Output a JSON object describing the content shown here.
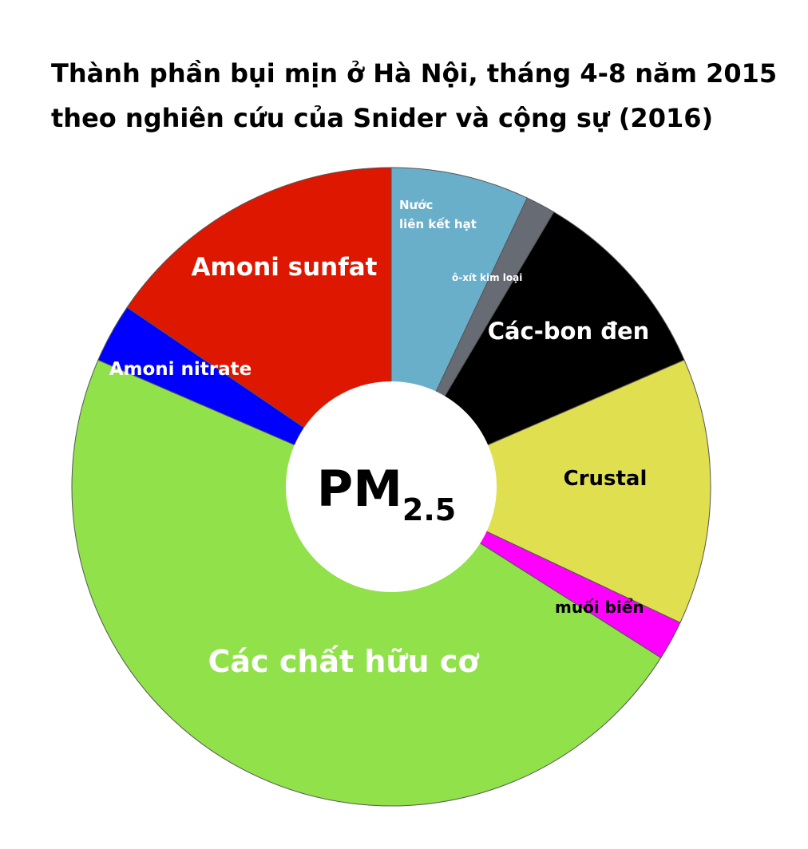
{
  "chart_data": {
    "type": "pie",
    "title": "Thành phần bụi mịn ở Hà Nội, tháng 4-8 năm 2015",
    "subtitle": "theo nghiên cứu của Snider và cộng sự (2016)",
    "center_label": {
      "main": "PM",
      "subscript": "2.5"
    },
    "slices": [
      {
        "label": "Nước liên kết hạt",
        "label_lines": [
          "Nước",
          "liên kết hạt"
        ],
        "value": 7.0,
        "color": "#6aafca",
        "text_color": "#ffffff"
      },
      {
        "label": "ô-xít kim loại",
        "label_lines": [
          "ô-xít kim loại"
        ],
        "value": 1.5,
        "color": "#666b74",
        "text_color": "#ffffff"
      },
      {
        "label": "Các-bon đen",
        "label_lines": [
          "Các-bon đen"
        ],
        "value": 10.0,
        "color": "#000000",
        "text_color": "#ffffff"
      },
      {
        "label": "Crustal",
        "label_lines": [
          "Crustal"
        ],
        "value": 13.5,
        "color": "#e0df4f",
        "text_color": "#000000"
      },
      {
        "label": "muối biển",
        "label_lines": [
          "muối biển"
        ],
        "value": 2.0,
        "color": "#ff00ff",
        "text_color": "#000000"
      },
      {
        "label": "Các chất hữu cơ",
        "label_lines": [
          "Các chất hữu cơ"
        ],
        "value": 47.5,
        "color": "#91e14b",
        "text_color": "#ffffff"
      },
      {
        "label": "Amoni nitrate",
        "label_lines": [
          "Amoni nitrate"
        ],
        "value": 3.0,
        "color": "#0000ff",
        "text_color": "#ffffff"
      },
      {
        "label": "Amoni sunfat",
        "label_lines": [
          "Amoni sunfat"
        ],
        "value": 15.5,
        "color": "#dd1700",
        "text_color": "#ffffff"
      }
    ],
    "legend": "none",
    "donut": true
  }
}
